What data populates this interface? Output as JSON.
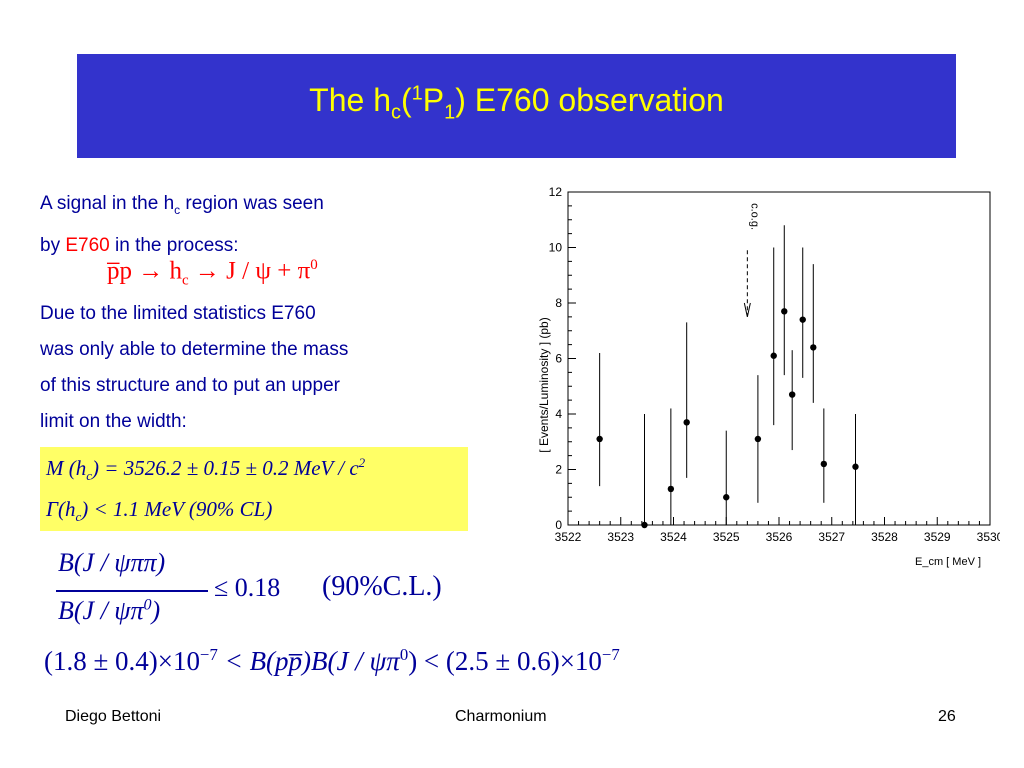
{
  "title": {
    "main": "The h",
    "sub1": "c",
    "paren_open": "(",
    "sup": "1",
    "p": "P",
    "sub2": "1",
    "rest": ") E760 observation"
  },
  "intro": {
    "line1_pre": "A signal in the h",
    "line1_sub": "c",
    "line1_post": " region was seen",
    "line2_pre": "by ",
    "line2_red": "E760",
    "line2_post": " in the process:"
  },
  "process": {
    "lhs": "p̅p → h",
    "lhs_sub": "c",
    "mid": " → J / ψ + π",
    "sup": "0"
  },
  "para2": [
    "Due to the limited statistics E760",
    "was only able to determine the mass",
    "of this structure and to put an upper",
    "limit on the width:"
  ],
  "mass_eq": {
    "text": "M (h",
    "sub": "c",
    "rest": ") = 3526.2 ± 0.15 ± 0.2 MeV / c",
    "sup": "2"
  },
  "width_eq": {
    "text": "Γ(h",
    "sub": "c",
    "rest": ") < 1.1 MeV (90% CL)"
  },
  "ratio_eq": {
    "num": "B(J / ψππ)",
    "den_pre": "B(J / ψπ",
    "den_sup": "0",
    "den_post": ")",
    "rhs": "≤ 0.18",
    "cl": "(90%C.L.)"
  },
  "product_eq": {
    "left": "(1.8 ± 0.4)×10",
    "left_sup": "−7",
    "mid": " < B(pp̅)B(J / ψπ",
    "mid_sup": "0",
    "mid_post": ") < (2.5 ± 0.6)×10",
    "right_sup": "−7"
  },
  "footer": {
    "author": "Diego Bettoni",
    "topic": "Charmonium",
    "page": "26"
  },
  "chart_data": {
    "type": "scatter",
    "ylabel": "[ Events/Luminosity ] (pb)",
    "xlabel": "E_cm [ MeV ]",
    "annotation": "c.o.g.",
    "annotation_x": 3525.4,
    "xlim": [
      3522,
      3530
    ],
    "ylim": [
      0,
      12
    ],
    "x_ticks": [
      "3522",
      "3523",
      "3524",
      "3525",
      "3526",
      "3527",
      "3528",
      "3529",
      "3530"
    ],
    "y_ticks": [
      "0",
      "2",
      "4",
      "6",
      "8",
      "10",
      "12"
    ],
    "points": [
      {
        "x": 3522.6,
        "y": 3.1,
        "lo": 1.4,
        "hi": 6.2
      },
      {
        "x": 3523.45,
        "y": 0.0,
        "lo": 0.0,
        "hi": 4.0
      },
      {
        "x": 3523.95,
        "y": 1.3,
        "lo": 0.0,
        "hi": 4.2
      },
      {
        "x": 3524.25,
        "y": 3.7,
        "lo": 1.7,
        "hi": 7.3
      },
      {
        "x": 3525.0,
        "y": 1.0,
        "lo": 0.0,
        "hi": 3.4
      },
      {
        "x": 3525.6,
        "y": 3.1,
        "lo": 0.8,
        "hi": 5.4
      },
      {
        "x": 3525.9,
        "y": 6.1,
        "lo": 3.6,
        "hi": 10.0
      },
      {
        "x": 3526.1,
        "y": 7.7,
        "lo": 5.4,
        "hi": 10.8
      },
      {
        "x": 3526.25,
        "y": 4.7,
        "lo": 2.7,
        "hi": 6.3
      },
      {
        "x": 3526.45,
        "y": 7.4,
        "lo": 5.3,
        "hi": 10.0
      },
      {
        "x": 3526.65,
        "y": 6.4,
        "lo": 4.4,
        "hi": 9.4
      },
      {
        "x": 3526.85,
        "y": 2.2,
        "lo": 0.8,
        "hi": 4.2
      },
      {
        "x": 3527.45,
        "y": 2.1,
        "lo": 0.0,
        "hi": 4.0
      }
    ]
  }
}
